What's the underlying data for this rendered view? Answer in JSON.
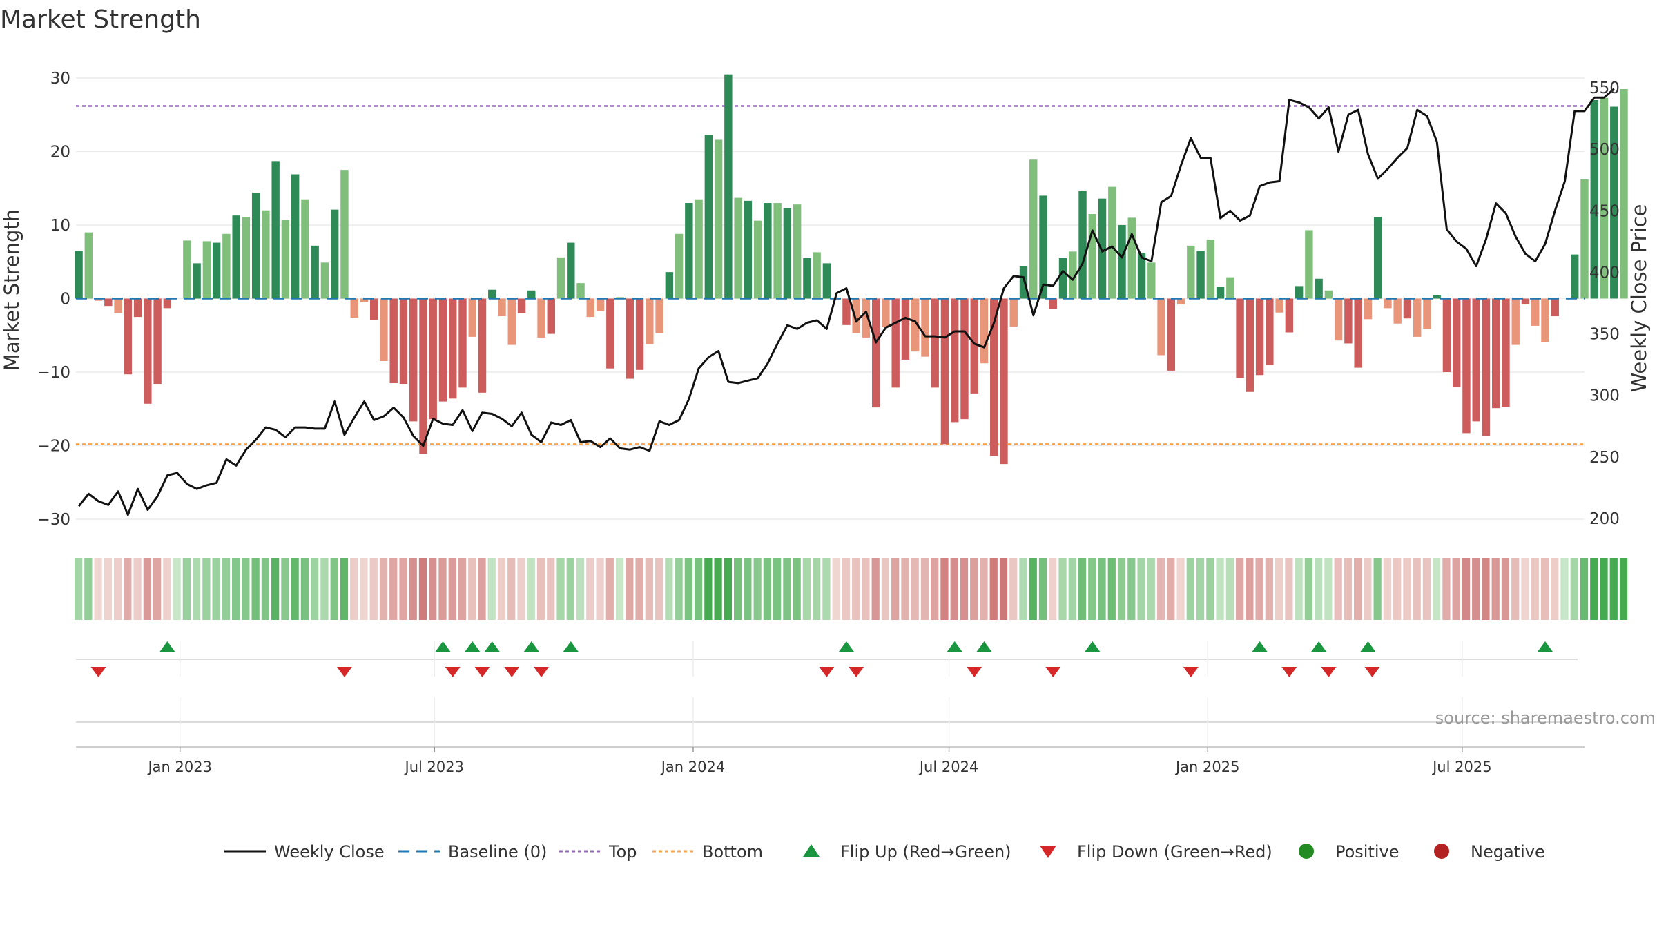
{
  "title": "Market Strength",
  "source_note": "source: sharemaestro.com",
  "colors": {
    "pos_strong": "#2e8b57",
    "pos_weak": "#7fbf7b",
    "neg_strong": "#cd5c5c",
    "neg_weak": "#e8957a",
    "price_line": "#111111",
    "baseline": "#1f77b4",
    "top_line": "#9467bd",
    "bottom_line": "#ff7f0e",
    "flip_up": "#1a9641",
    "flip_down": "#d62728",
    "positive": "#228b22",
    "negative": "#b22222"
  },
  "chart_data": {
    "type": "bar",
    "x_tick_labels": [
      "Jan 2023",
      "Jul 2023",
      "Jan 2024",
      "Jul 2024",
      "Jan 2025",
      "Jul 2025"
    ],
    "x_tick_dates": [
      "2023-01-01",
      "2023-07-01",
      "2024-01-01",
      "2024-07-01",
      "2025-01-01",
      "2025-07-01"
    ],
    "x_range": [
      "2022-10-19",
      "2025-09-26"
    ],
    "week_start": "2022-10-21",
    "ylabel_left": "Market Strength",
    "ylabel_right": "Weekly Close Price",
    "ylim_left": [
      -30,
      30
    ],
    "ylim_left_ticks": [
      30,
      20,
      10,
      0,
      -10,
      -20,
      -30
    ],
    "ylim_right_ticks": [
      550,
      500,
      450,
      400,
      350,
      300,
      250,
      200
    ],
    "ylim_right": [
      200,
      550
    ],
    "top_level": 26.2,
    "bottom_level": -19.8,
    "strength": [
      6.5,
      9.0,
      -0.3,
      -1.0,
      -2.0,
      -10.3,
      -2.5,
      -14.3,
      -11.6,
      -1.3,
      0,
      7.9,
      4.8,
      7.8,
      7.6,
      8.8,
      11.3,
      11.1,
      14.4,
      12.0,
      18.7,
      10.7,
      16.9,
      13.5,
      7.2,
      4.9,
      12.1,
      17.5,
      -2.6,
      -0.5,
      -2.9,
      -8.5,
      -11.5,
      -11.6,
      -16.7,
      -21.1,
      -16.4,
      -14.0,
      -13.6,
      -12.1,
      -5.2,
      -12.8,
      1.2,
      -2.4,
      -6.3,
      -2.0,
      1.1,
      -5.3,
      -4.8,
      5.6,
      7.6,
      2.1,
      -2.5,
      -1.7,
      -9.5,
      0.2,
      -10.9,
      -9.7,
      -6.2,
      -4.7,
      3.6,
      8.8,
      13.0,
      13.5,
      22.3,
      21.6,
      30.5,
      13.7,
      13.3,
      10.6,
      13.0,
      13.0,
      12.3,
      12.8,
      5.5,
      6.3,
      4.8,
      -0.2,
      -3.6,
      -4.7,
      -5.3,
      -14.8,
      -3.9,
      -12.1,
      -8.3,
      -7.2,
      -7.9,
      -12.1,
      -19.8,
      -16.8,
      -16.4,
      -12.9,
      -8.8,
      -21.4,
      -22.5,
      -3.8,
      4.4,
      18.9,
      14.0,
      -1.4,
      5.5,
      6.4,
      14.7,
      11.5,
      13.6,
      15.2,
      10.0,
      11.0,
      6.2,
      4.9,
      -7.7,
      -9.8,
      -0.8,
      7.2,
      6.5,
      8.0,
      1.6,
      2.9,
      -10.8,
      -12.7,
      -10.4,
      -9.0,
      -1.9,
      -4.6,
      1.7,
      9.3,
      2.7,
      1.1,
      -5.7,
      -6.1,
      -9.4,
      -2.8,
      11.1,
      -1.3,
      -3.4,
      -2.7,
      -5.2,
      -4.1,
      0.5,
      -10.0,
      -12.0,
      -18.3,
      -16.7,
      -18.7,
      -14.9,
      -14.7,
      -6.3,
      -0.8,
      -3.7,
      -5.9,
      -2.4,
      0,
      6.0,
      16.2,
      27.0,
      27.3,
      26.1,
      28.5
    ],
    "close": [
      210,
      220,
      214,
      211,
      222,
      203,
      224,
      207,
      218,
      235,
      237,
      228,
      224,
      227,
      229,
      248,
      243,
      256,
      264,
      274,
      272,
      266,
      274,
      274,
      273,
      273,
      295,
      268,
      282,
      295,
      280,
      283,
      290,
      282,
      267,
      259,
      281,
      277,
      276,
      288,
      271,
      286,
      285,
      281,
      275,
      286,
      268,
      262,
      278,
      276,
      280,
      262,
      263,
      258,
      265,
      257,
      256,
      258,
      255,
      279,
      276,
      280,
      297,
      322,
      331,
      336,
      311,
      310,
      312,
      314,
      326,
      342,
      357,
      354,
      359,
      361,
      354,
      383,
      387,
      360,
      368,
      343,
      355,
      359,
      363,
      360,
      348,
      348,
      347,
      352,
      352,
      342,
      339,
      359,
      387,
      397,
      396,
      365,
      390,
      389,
      401,
      394,
      407,
      434,
      417,
      421,
      412,
      431,
      412,
      409,
      457,
      462,
      487,
      509,
      493,
      493,
      444,
      450,
      442,
      446,
      470,
      473,
      474,
      540,
      538,
      534,
      525,
      534,
      498,
      528,
      532,
      496,
      476,
      484,
      493,
      501,
      532,
      527,
      506,
      435,
      425,
      419,
      405,
      427,
      456,
      448,
      429,
      415,
      409,
      423,
      450,
      474,
      531,
      531,
      542,
      542,
      549
    ],
    "flip_up_dates": [
      "2022-12-23",
      "2023-07-07",
      "2023-07-28",
      "2023-08-11",
      "2023-09-08",
      "2023-10-06",
      "2024-04-19",
      "2024-07-05",
      "2024-07-26",
      "2024-10-11",
      "2025-02-07",
      "2025-03-21",
      "2025-04-25",
      "2025-08-29"
    ],
    "flip_down_dates": [
      "2022-11-04",
      "2023-04-28",
      "2023-07-14",
      "2023-08-04",
      "2023-08-25",
      "2023-09-15",
      "2024-04-05",
      "2024-04-26",
      "2024-07-19",
      "2024-09-13",
      "2024-12-20",
      "2025-02-28",
      "2025-03-28",
      "2025-04-28"
    ]
  },
  "legend": [
    {
      "label": "Weekly Close",
      "icon": "solid-line"
    },
    {
      "label": "Baseline (0)",
      "icon": "dashed-line"
    },
    {
      "label": "Top",
      "icon": "dotted-line"
    },
    {
      "label": "Bottom",
      "icon": "dotted-line"
    },
    {
      "label": "Flip Up (Red→Green)",
      "icon": "triangle-up"
    },
    {
      "label": "Flip Down (Green→Red)",
      "icon": "triangle-down"
    },
    {
      "label": "Positive",
      "icon": "circle"
    },
    {
      "label": "Negative",
      "icon": "circle"
    }
  ]
}
